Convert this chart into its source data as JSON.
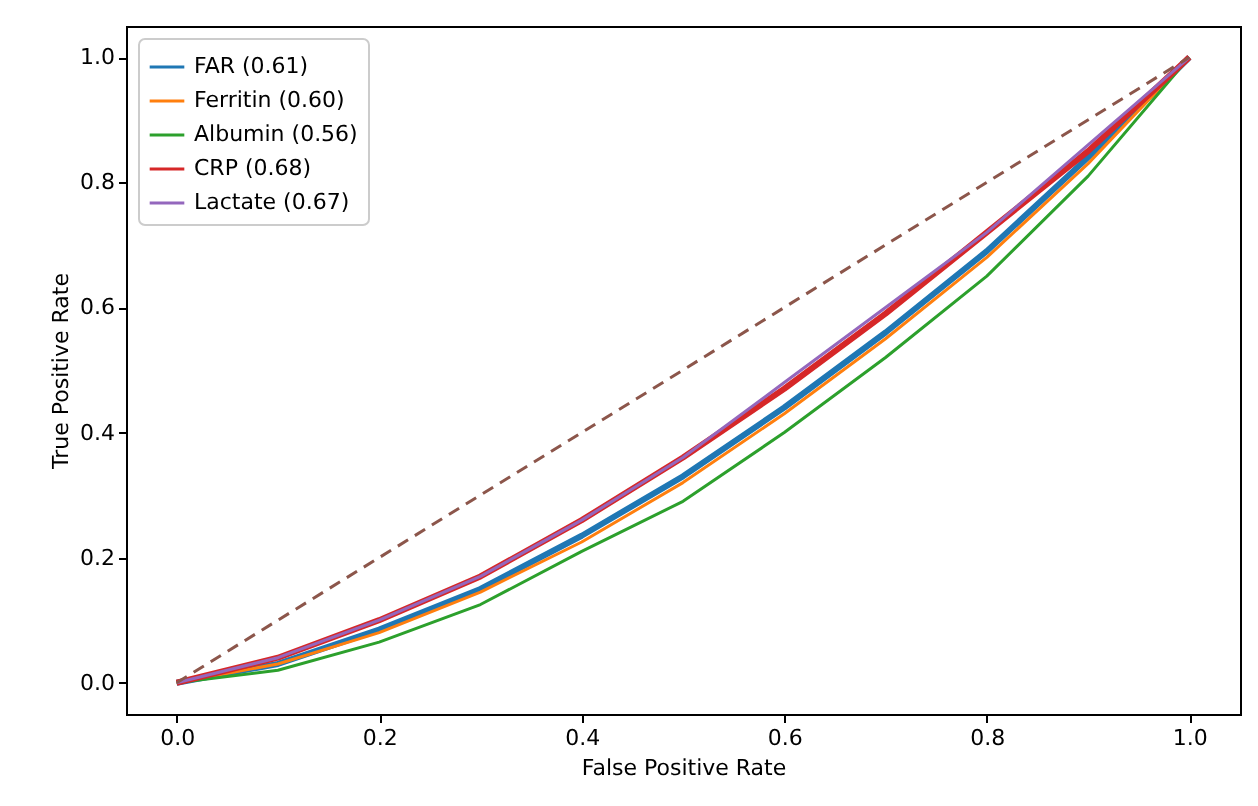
{
  "chart_data": {
    "type": "line",
    "xlabel": "False Positive Rate",
    "ylabel": "True Positive Rate",
    "x": [
      0,
      0.1,
      0.2,
      0.3,
      0.4,
      0.5,
      0.6,
      0.7,
      0.8,
      0.9,
      1
    ],
    "xlim": [
      -0.05,
      1.05
    ],
    "ylim": [
      -0.05,
      1.05
    ],
    "xticks": [
      {
        "value": 0,
        "label": "0.0"
      },
      0.2,
      0.4,
      0.6,
      0.8,
      {
        "value": 1,
        "label": "1.0"
      }
    ],
    "yticks": [
      {
        "value": 0,
        "label": "0.0"
      },
      0.2,
      0.4,
      0.6,
      0.8,
      {
        "value": 1,
        "label": "1.0"
      }
    ],
    "grid": false,
    "legend": "top left",
    "marker": "none",
    "series": [
      {
        "name": "FAR (0.61)",
        "color": "#1f77b4",
        "values": [
          0,
          0.03,
          0.085,
          0.15,
          0.235,
          0.33,
          0.44,
          0.56,
          0.69,
          0.84,
          1
        ]
      },
      {
        "name": "Ferritin (0.60)",
        "color": "#ff7f0e",
        "values": [
          0,
          0.03,
          0.08,
          0.145,
          0.225,
          0.32,
          0.43,
          0.55,
          0.68,
          0.83,
          1
        ]
      },
      {
        "name": "Albumin (0.56)",
        "color": "#2ca02c",
        "values": [
          0,
          0.02,
          0.065,
          0.125,
          0.21,
          0.29,
          0.4,
          0.52,
          0.65,
          0.81,
          1
        ]
      },
      {
        "name": "CRP (0.68)",
        "color": "#d62728",
        "values": [
          0,
          0.04,
          0.1,
          0.17,
          0.26,
          0.36,
          0.47,
          0.59,
          0.72,
          0.85,
          1
        ]
      },
      {
        "name": "Lactate (0.67)",
        "color": "#9467bd",
        "values": [
          0,
          0.04,
          0.1,
          0.17,
          0.26,
          0.36,
          0.48,
          0.6,
          0.72,
          0.86,
          1
        ]
      },
      {
        "color": "#8c564b",
        "line_style": "dashed",
        "x": [
          0,
          1
        ],
        "values": [
          0,
          1
        ]
      }
    ]
  }
}
